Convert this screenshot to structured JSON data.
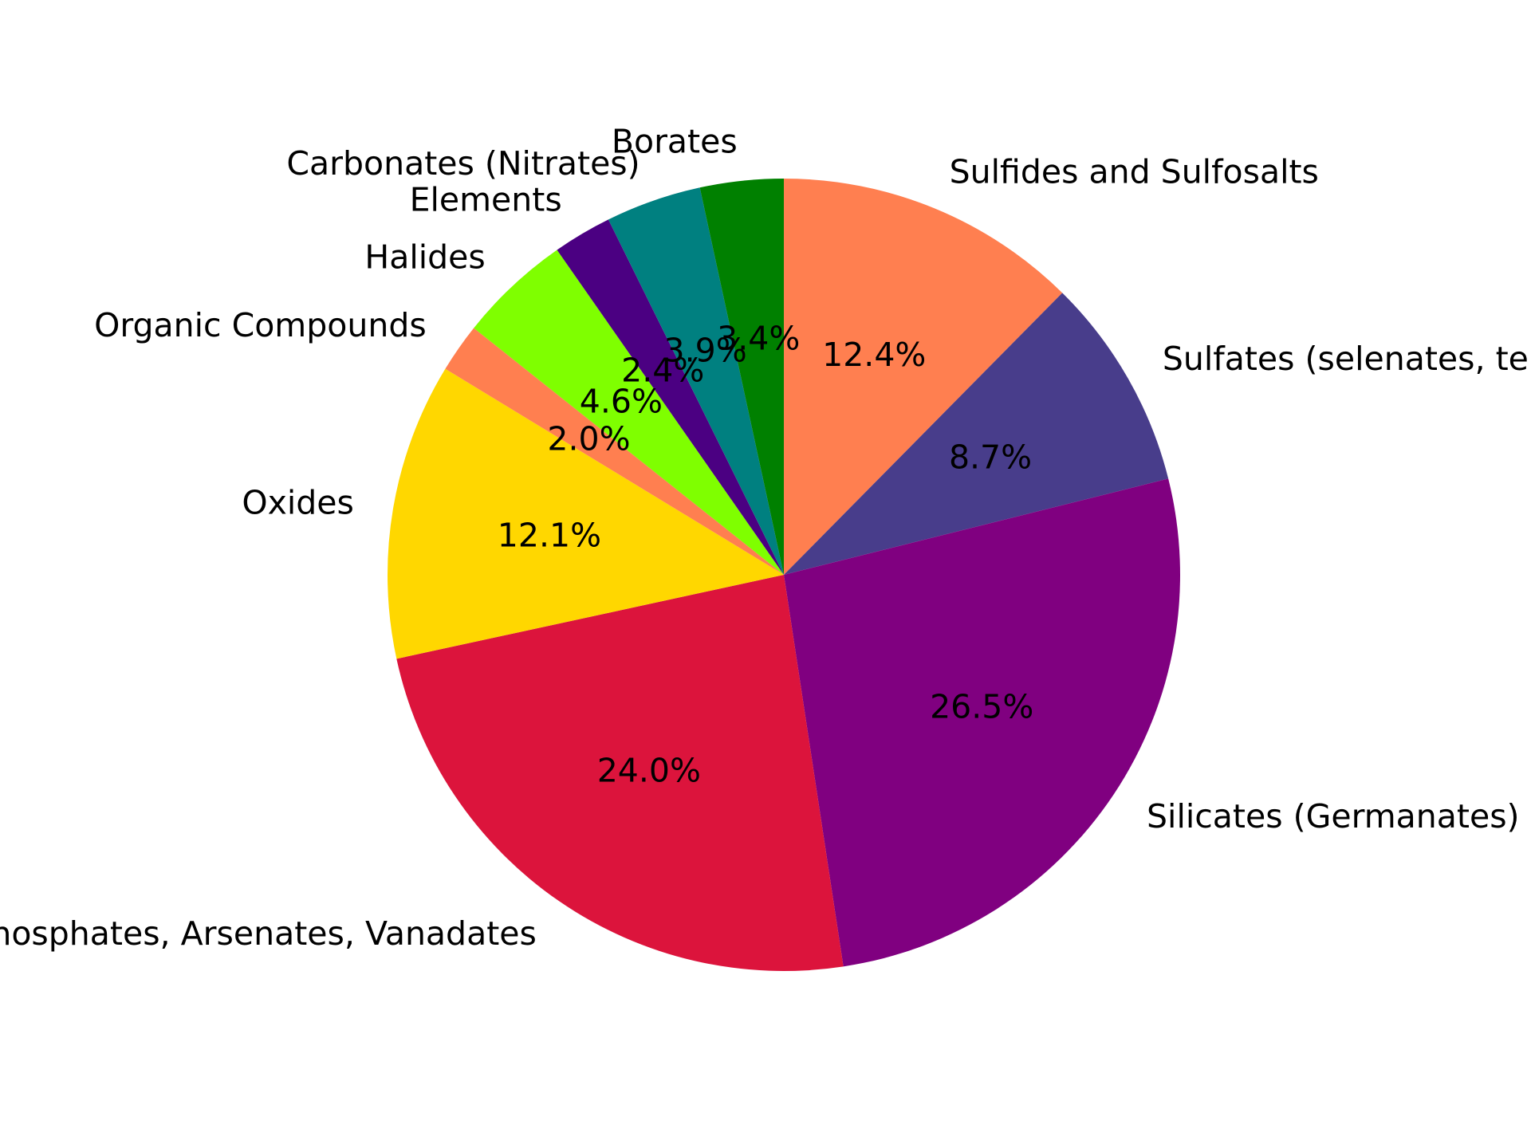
{
  "chart_data": {
    "type": "pie",
    "title": "",
    "start_angle_deg": 90,
    "direction": "clockwise",
    "slices": [
      {
        "label": "Sulfides and Sulfosalts",
        "value": 12.4,
        "pct_label": "12.4%",
        "color": "#FF7F50"
      },
      {
        "label": "Sulfates (selenates, tellurates, chromates, molybdates, wolframates)",
        "value": 8.7,
        "pct_label": "8.7%",
        "color": "#483D8B"
      },
      {
        "label": "Silicates (Germanates)",
        "value": 26.5,
        "pct_label": "26.5%",
        "color": "#800080"
      },
      {
        "label": "Phosphates, Arsenates, Vanadates",
        "value": 24.0,
        "pct_label": "24.0%",
        "color": "#DC143C"
      },
      {
        "label": "Oxides",
        "value": 12.1,
        "pct_label": "12.1%",
        "color": "#FFD700"
      },
      {
        "label": "Organic Compounds",
        "value": 2.0,
        "pct_label": "2.0%",
        "color": "#FF7F50"
      },
      {
        "label": "Halides",
        "value": 4.6,
        "pct_label": "4.6%",
        "color": "#7FFF00"
      },
      {
        "label": "Elements",
        "value": 2.4,
        "pct_label": "2.4%",
        "color": "#4B0082"
      },
      {
        "label": "Carbonates (Nitrates)",
        "value": 3.9,
        "pct_label": "3.9%",
        "color": "#008080"
      },
      {
        "label": "Borates",
        "value": 3.4,
        "pct_label": "3.4%",
        "color": "#008000"
      }
    ]
  }
}
